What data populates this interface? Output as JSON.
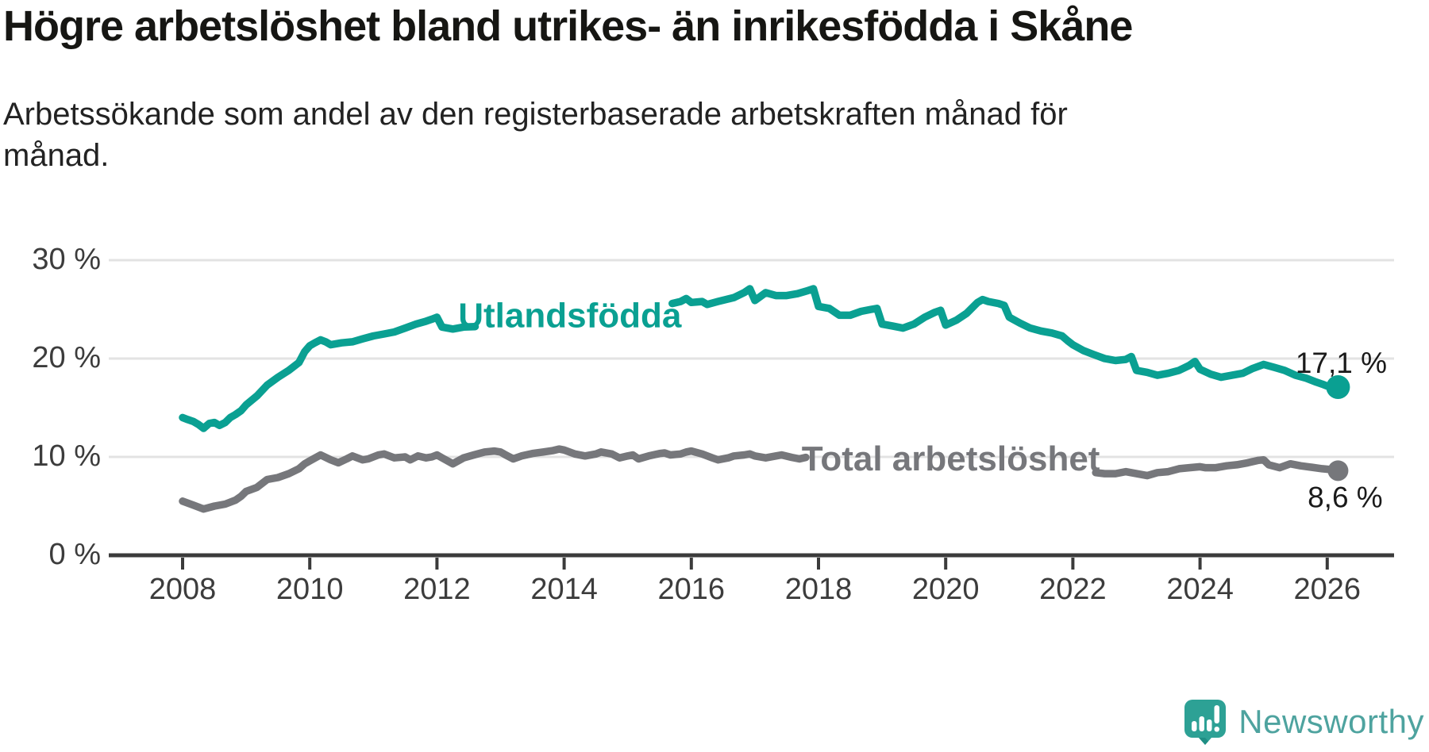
{
  "header": {
    "title": "Högre arbetslöshet bland utrikes- än inrikesfödda i Skåne",
    "subtitle": "Arbetssökande som andel av den registerbaserade arbetskraften månad för månad."
  },
  "colors": {
    "foreign_born": "#0aa092",
    "total": "#76777b",
    "grid": "#e3e3e3",
    "axis": "#3b3b3b",
    "tick_text": "#3c3c3c",
    "value_label": "#1a1a1a",
    "logo": "#2da195",
    "wordmark": "#4ea39f"
  },
  "branding": {
    "wordmark": "Newsworthy",
    "logo_icon": "newsworthy-pin-barchart-icon"
  },
  "chart_data": {
    "type": "line",
    "title": "Högre arbetslöshet bland utrikes- än inrikesfödda i Skåne",
    "subtitle": "Arbetssökande som andel av den registerbaserade arbetskraften månad för månad.",
    "grid": true,
    "legend_position": "inline-labels",
    "x_axis": {
      "unit": "year",
      "range": [
        2006.8,
        2027.1
      ],
      "ticks": [
        {
          "value": 2008,
          "label": "2008"
        },
        {
          "value": 2010,
          "label": "2010"
        },
        {
          "value": 2012,
          "label": "2012"
        },
        {
          "value": 2014,
          "label": "2014"
        },
        {
          "value": 2016,
          "label": "2016"
        },
        {
          "value": 2018,
          "label": "2018"
        },
        {
          "value": 2020,
          "label": "2020"
        },
        {
          "value": 2022,
          "label": "2022"
        },
        {
          "value": 2024,
          "label": "2024"
        },
        {
          "value": 2026,
          "label": "2026"
        }
      ]
    },
    "y_axis": {
      "unit": "%",
      "range": [
        0,
        30
      ],
      "ticks": [
        {
          "value": 0,
          "label": "0 %"
        },
        {
          "value": 10,
          "label": "10 %"
        },
        {
          "value": 20,
          "label": "20 %"
        },
        {
          "value": 30,
          "label": "30 %"
        }
      ]
    },
    "series": [
      {
        "name": "Total arbetslöshet",
        "color_key": "total",
        "label_at": [
          2020.08,
          9.85
        ],
        "end_value": 8.6,
        "end_label": "8,6 %",
        "end_label_position": "below-right",
        "dot_radius": 13,
        "segments": [
          [
            [
              2008.0,
              5.5
            ],
            [
              2008.17,
              5.1
            ],
            [
              2008.33,
              4.7
            ],
            [
              2008.5,
              5.0
            ],
            [
              2008.67,
              5.2
            ],
            [
              2008.83,
              5.6
            ],
            [
              2008.92,
              6.0
            ],
            [
              2009.0,
              6.5
            ],
            [
              2009.17,
              6.9
            ],
            [
              2009.33,
              7.7
            ],
            [
              2009.5,
              7.9
            ],
            [
              2009.67,
              8.3
            ],
            [
              2009.83,
              8.8
            ],
            [
              2009.92,
              9.3
            ],
            [
              2010.0,
              9.6
            ],
            [
              2010.17,
              10.2
            ],
            [
              2010.33,
              9.7
            ],
            [
              2010.45,
              9.4
            ],
            [
              2010.58,
              9.8
            ],
            [
              2010.67,
              10.1
            ],
            [
              2010.83,
              9.7
            ],
            [
              2010.92,
              9.8
            ],
            [
              2011.08,
              10.2
            ],
            [
              2011.17,
              10.3
            ],
            [
              2011.33,
              9.9
            ],
            [
              2011.5,
              10.0
            ],
            [
              2011.58,
              9.7
            ],
            [
              2011.7,
              10.1
            ],
            [
              2011.83,
              9.9
            ],
            [
              2011.92,
              10.0
            ],
            [
              2012.0,
              10.2
            ],
            [
              2012.08,
              9.9
            ],
            [
              2012.25,
              9.3
            ],
            [
              2012.42,
              9.9
            ],
            [
              2012.58,
              10.2
            ],
            [
              2012.75,
              10.5
            ],
            [
              2012.9,
              10.6
            ],
            [
              2013.0,
              10.5
            ],
            [
              2013.08,
              10.2
            ],
            [
              2013.2,
              9.8
            ],
            [
              2013.33,
              10.1
            ],
            [
              2013.5,
              10.35
            ],
            [
              2013.67,
              10.5
            ],
            [
              2013.83,
              10.65
            ],
            [
              2013.92,
              10.8
            ],
            [
              2014.0,
              10.7
            ],
            [
              2014.17,
              10.3
            ],
            [
              2014.33,
              10.1
            ],
            [
              2014.5,
              10.3
            ],
            [
              2014.58,
              10.5
            ],
            [
              2014.75,
              10.3
            ],
            [
              2014.87,
              9.9
            ],
            [
              2015.0,
              10.1
            ],
            [
              2015.08,
              10.2
            ],
            [
              2015.17,
              9.8
            ],
            [
              2015.33,
              10.1
            ],
            [
              2015.5,
              10.35
            ],
            [
              2015.58,
              10.4
            ],
            [
              2015.67,
              10.2
            ],
            [
              2015.83,
              10.3
            ],
            [
              2015.92,
              10.5
            ],
            [
              2016.0,
              10.6
            ],
            [
              2016.17,
              10.3
            ],
            [
              2016.33,
              9.9
            ],
            [
              2016.42,
              9.7
            ],
            [
              2016.58,
              9.9
            ],
            [
              2016.67,
              10.1
            ],
            [
              2016.83,
              10.2
            ],
            [
              2016.92,
              10.3
            ],
            [
              2017.0,
              10.1
            ],
            [
              2017.17,
              9.9
            ],
            [
              2017.33,
              10.1
            ],
            [
              2017.42,
              10.2
            ],
            [
              2017.58,
              9.95
            ],
            [
              2017.7,
              9.8
            ],
            [
              2017.8,
              9.95
            ]
          ],
          [
            [
              2022.36,
              8.4
            ],
            [
              2022.5,
              8.3
            ],
            [
              2022.67,
              8.3
            ],
            [
              2022.83,
              8.5
            ],
            [
              2023.0,
              8.3
            ],
            [
              2023.17,
              8.1
            ],
            [
              2023.33,
              8.4
            ],
            [
              2023.5,
              8.5
            ],
            [
              2023.67,
              8.8
            ],
            [
              2023.83,
              8.9
            ],
            [
              2024.0,
              9.0
            ],
            [
              2024.08,
              8.9
            ],
            [
              2024.25,
              8.9
            ],
            [
              2024.42,
              9.1
            ],
            [
              2024.58,
              9.2
            ],
            [
              2024.75,
              9.4
            ],
            [
              2024.92,
              9.65
            ],
            [
              2025.0,
              9.7
            ],
            [
              2025.08,
              9.2
            ],
            [
              2025.25,
              8.9
            ],
            [
              2025.42,
              9.3
            ],
            [
              2025.58,
              9.1
            ],
            [
              2025.75,
              8.95
            ],
            [
              2025.92,
              8.8
            ],
            [
              2026.0,
              8.75
            ],
            [
              2026.17,
              8.6
            ]
          ]
        ]
      },
      {
        "name": "Utlandsfödda",
        "color_key": "foreign_born",
        "label_at": [
          2014.09,
          24.4
        ],
        "end_value": 17.1,
        "end_label": "17,1 %",
        "end_label_position": "above-right",
        "dot_radius": 15,
        "segments": [
          [
            [
              2008.0,
              14.0
            ],
            [
              2008.08,
              13.8
            ],
            [
              2008.17,
              13.6
            ],
            [
              2008.25,
              13.3
            ],
            [
              2008.33,
              12.9
            ],
            [
              2008.42,
              13.4
            ],
            [
              2008.5,
              13.5
            ],
            [
              2008.58,
              13.2
            ],
            [
              2008.67,
              13.5
            ],
            [
              2008.75,
              14.0
            ],
            [
              2008.83,
              14.3
            ],
            [
              2008.92,
              14.7
            ],
            [
              2009.0,
              15.3
            ],
            [
              2009.17,
              16.2
            ],
            [
              2009.33,
              17.3
            ],
            [
              2009.5,
              18.1
            ],
            [
              2009.67,
              18.8
            ],
            [
              2009.83,
              19.6
            ],
            [
              2009.92,
              20.7
            ],
            [
              2010.0,
              21.3
            ],
            [
              2010.08,
              21.6
            ],
            [
              2010.17,
              21.9
            ],
            [
              2010.25,
              21.7
            ],
            [
              2010.33,
              21.4
            ],
            [
              2010.5,
              21.6
            ],
            [
              2010.67,
              21.7
            ],
            [
              2010.83,
              22.0
            ],
            [
              2011.0,
              22.3
            ],
            [
              2011.17,
              22.5
            ],
            [
              2011.33,
              22.7
            ],
            [
              2011.5,
              23.1
            ],
            [
              2011.67,
              23.5
            ],
            [
              2011.83,
              23.8
            ],
            [
              2011.92,
              24.0
            ],
            [
              2012.0,
              24.2
            ],
            [
              2012.08,
              23.2
            ],
            [
              2012.25,
              23.0
            ],
            [
              2012.42,
              23.2
            ],
            [
              2012.6,
              23.25
            ]
          ],
          [
            [
              2015.7,
              25.6
            ],
            [
              2015.83,
              25.8
            ],
            [
              2015.92,
              26.1
            ],
            [
              2016.0,
              25.7
            ],
            [
              2016.17,
              25.8
            ],
            [
              2016.25,
              25.5
            ],
            [
              2016.42,
              25.8
            ],
            [
              2016.67,
              26.2
            ],
            [
              2016.83,
              26.7
            ],
            [
              2016.92,
              27.1
            ],
            [
              2017.0,
              25.9
            ],
            [
              2017.17,
              26.7
            ],
            [
              2017.33,
              26.4
            ],
            [
              2017.5,
              26.4
            ],
            [
              2017.67,
              26.6
            ],
            [
              2017.83,
              26.9
            ],
            [
              2017.92,
              27.1
            ],
            [
              2018.0,
              25.3
            ],
            [
              2018.17,
              25.1
            ],
            [
              2018.33,
              24.4
            ],
            [
              2018.5,
              24.4
            ],
            [
              2018.67,
              24.8
            ],
            [
              2018.83,
              25.0
            ],
            [
              2018.92,
              25.1
            ],
            [
              2019.0,
              23.5
            ],
            [
              2019.17,
              23.3
            ],
            [
              2019.33,
              23.1
            ],
            [
              2019.5,
              23.5
            ],
            [
              2019.67,
              24.2
            ],
            [
              2019.83,
              24.7
            ],
            [
              2019.92,
              24.9
            ],
            [
              2020.0,
              23.4
            ],
            [
              2020.17,
              23.9
            ],
            [
              2020.33,
              24.6
            ],
            [
              2020.5,
              25.7
            ],
            [
              2020.58,
              26.0
            ],
            [
              2020.67,
              25.8
            ],
            [
              2020.83,
              25.6
            ],
            [
              2020.92,
              25.4
            ],
            [
              2021.0,
              24.2
            ],
            [
              2021.17,
              23.6
            ],
            [
              2021.33,
              23.1
            ],
            [
              2021.5,
              22.8
            ],
            [
              2021.67,
              22.6
            ],
            [
              2021.83,
              22.3
            ],
            [
              2021.92,
              21.8
            ],
            [
              2022.0,
              21.4
            ],
            [
              2022.17,
              20.8
            ],
            [
              2022.33,
              20.4
            ],
            [
              2022.5,
              20.0
            ],
            [
              2022.67,
              19.8
            ],
            [
              2022.83,
              19.9
            ],
            [
              2022.92,
              20.2
            ],
            [
              2023.0,
              18.8
            ],
            [
              2023.17,
              18.6
            ],
            [
              2023.33,
              18.3
            ],
            [
              2023.5,
              18.5
            ],
            [
              2023.67,
              18.8
            ],
            [
              2023.83,
              19.3
            ],
            [
              2023.92,
              19.7
            ],
            [
              2024.0,
              18.9
            ],
            [
              2024.17,
              18.4
            ],
            [
              2024.33,
              18.1
            ],
            [
              2024.5,
              18.3
            ],
            [
              2024.67,
              18.5
            ],
            [
              2024.83,
              19.0
            ],
            [
              2025.0,
              19.4
            ],
            [
              2025.17,
              19.1
            ],
            [
              2025.33,
              18.8
            ],
            [
              2025.5,
              18.3
            ],
            [
              2025.67,
              18.0
            ],
            [
              2025.83,
              17.6
            ],
            [
              2025.92,
              17.4
            ],
            [
              2026.0,
              17.2
            ],
            [
              2026.08,
              17.3
            ],
            [
              2026.17,
              17.1
            ]
          ]
        ]
      }
    ]
  }
}
